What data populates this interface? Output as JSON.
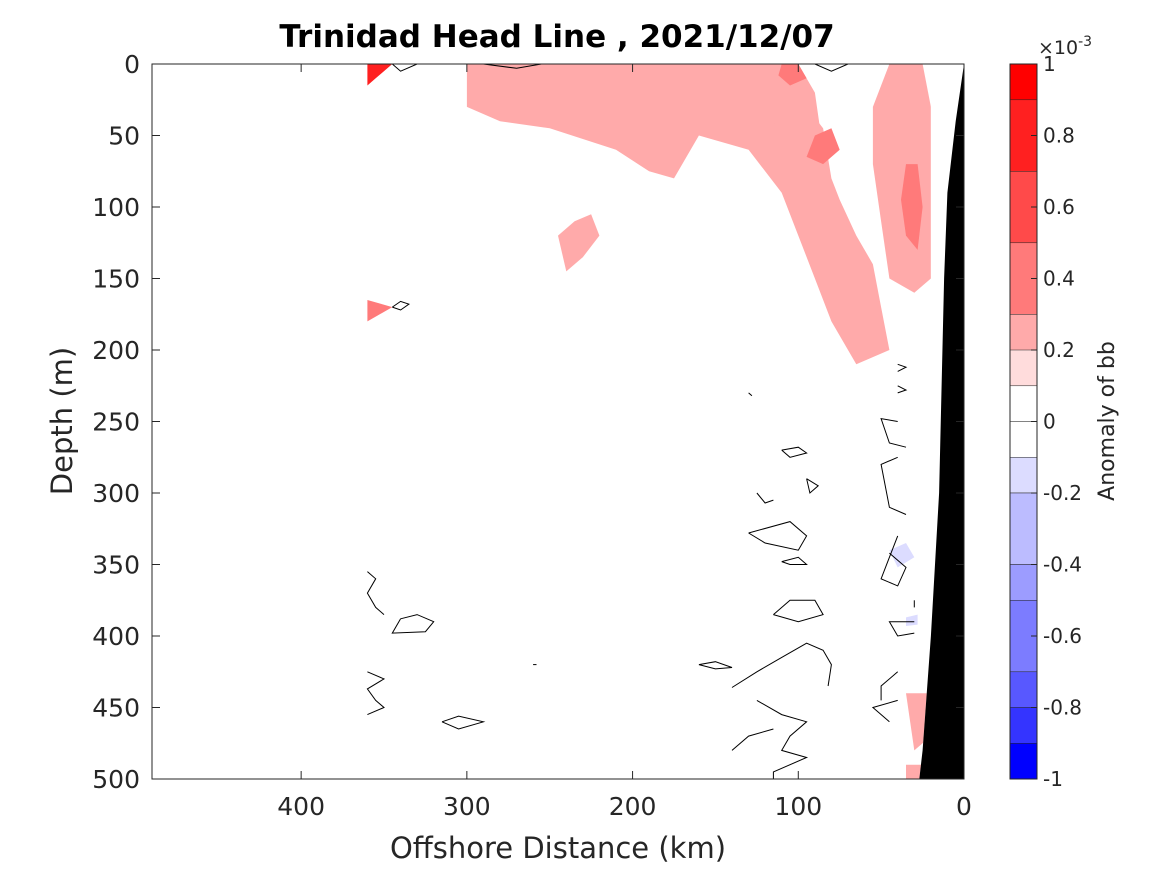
{
  "chart_data": {
    "type": "heatmap",
    "title": "Trinidad Head Line , 2021/12/07",
    "xlabel": "Offshore Distance (km)",
    "ylabel": "Depth (m)",
    "xlim": [
      490,
      0
    ],
    "ylim": [
      0,
      500
    ],
    "x_reversed": true,
    "y_reversed": true,
    "x_ticks": [
      400,
      300,
      200,
      100,
      0
    ],
    "y_ticks": [
      0,
      50,
      100,
      150,
      200,
      250,
      300,
      350,
      400,
      450,
      500
    ],
    "grid": false,
    "colorbar": {
      "label": "Anomaly of bb",
      "exponent_label": "×10",
      "exponent_power": "-3",
      "range": [
        -1,
        1
      ],
      "ticks": [
        "1",
        "0.8",
        "0.6",
        "0.4",
        "0.2",
        "0",
        "-0.2",
        "-0.4",
        "-0.6",
        "-0.8",
        "-1"
      ],
      "levels": [
        {
          "from": 0.9,
          "to": 1.0,
          "color": "#ff0000"
        },
        {
          "from": 0.7,
          "to": 0.9,
          "color": "#ff2020"
        },
        {
          "from": 0.5,
          "to": 0.7,
          "color": "#ff4a4a"
        },
        {
          "from": 0.3,
          "to": 0.5,
          "color": "#ff7a7a"
        },
        {
          "from": 0.1,
          "to": 0.3,
          "color": "#ffaaaa"
        },
        {
          "from": 0.1,
          "to": 0.2,
          "color": "#ffdcdc"
        },
        {
          "from": 0.0,
          "to": 0.1,
          "color": "#ffffff"
        },
        {
          "from": -0.1,
          "to": 0.0,
          "color": "#ffffff"
        },
        {
          "from": -0.2,
          "to": -0.1,
          "color": "#dcdcff"
        },
        {
          "from": -0.4,
          "to": -0.2,
          "color": "#bcbcff"
        },
        {
          "from": -0.5,
          "to": -0.4,
          "color": "#9c9cff"
        },
        {
          "from": -0.7,
          "to": -0.5,
          "color": "#7c7cff"
        },
        {
          "from": -0.8,
          "to": -0.7,
          "color": "#5858ff"
        },
        {
          "from": -0.9,
          "to": -0.8,
          "color": "#3434ff"
        },
        {
          "from": -1.0,
          "to": -0.9,
          "color": "#0000ff"
        }
      ]
    },
    "bottom_mask_color": "#000000",
    "positive_regions": [
      {
        "level": 0.15,
        "points": [
          [
            300,
            0
          ],
          [
            230,
            0
          ],
          [
            120,
            0
          ],
          [
            110,
            15
          ],
          [
            95,
            30
          ],
          [
            85,
            45
          ],
          [
            80,
            80
          ],
          [
            75,
            95
          ],
          [
            65,
            120
          ],
          [
            55,
            140
          ],
          [
            50,
            170
          ],
          [
            45,
            200
          ],
          [
            65,
            210
          ],
          [
            80,
            180
          ],
          [
            90,
            150
          ],
          [
            100,
            120
          ],
          [
            110,
            90
          ],
          [
            130,
            60
          ],
          [
            160,
            50
          ],
          [
            175,
            80
          ],
          [
            190,
            75
          ],
          [
            210,
            60
          ],
          [
            250,
            45
          ],
          [
            280,
            40
          ],
          [
            300,
            30
          ]
        ]
      },
      {
        "level": 0.15,
        "points": [
          [
            235,
            110
          ],
          [
            225,
            105
          ],
          [
            220,
            120
          ],
          [
            230,
            135
          ],
          [
            240,
            145
          ],
          [
            245,
            120
          ]
        ]
      },
      {
        "level": 0.15,
        "points": [
          [
            45,
            0
          ],
          [
            25,
            0
          ],
          [
            20,
            30
          ],
          [
            20,
            80
          ],
          [
            20,
            150
          ],
          [
            30,
            160
          ],
          [
            45,
            150
          ],
          [
            50,
            110
          ],
          [
            55,
            70
          ],
          [
            55,
            30
          ]
        ]
      },
      {
        "level": 0.3,
        "points": [
          [
            125,
            0
          ],
          [
            100,
            0
          ],
          [
            90,
            20
          ],
          [
            85,
            60
          ],
          [
            80,
            90
          ],
          [
            75,
            110
          ],
          [
            70,
            120
          ],
          [
            75,
            130
          ],
          [
            85,
            110
          ],
          [
            95,
            80
          ],
          [
            105,
            60
          ],
          [
            115,
            40
          ],
          [
            120,
            20
          ]
        ]
      },
      {
        "level": 0.3,
        "points": [
          [
            40,
            40
          ],
          [
            30,
            40
          ],
          [
            25,
            80
          ],
          [
            25,
            130
          ],
          [
            35,
            150
          ],
          [
            45,
            140
          ],
          [
            45,
            90
          ]
        ]
      },
      {
        "level": 0.5,
        "points": [
          [
            110,
            0
          ],
          [
            100,
            0
          ],
          [
            95,
            10
          ],
          [
            105,
            15
          ],
          [
            112,
            8
          ]
        ]
      },
      {
        "level": 0.5,
        "points": [
          [
            90,
            50
          ],
          [
            80,
            45
          ],
          [
            75,
            60
          ],
          [
            85,
            70
          ],
          [
            95,
            65
          ]
        ]
      },
      {
        "level": 0.5,
        "points": [
          [
            35,
            70
          ],
          [
            28,
            70
          ],
          [
            25,
            100
          ],
          [
            28,
            130
          ],
          [
            35,
            120
          ],
          [
            38,
            95
          ]
        ]
      },
      {
        "level": 0.9,
        "points": [
          [
            360,
            0
          ],
          [
            345,
            0
          ],
          [
            355,
            10
          ],
          [
            360,
            15
          ]
        ]
      },
      {
        "level": 0.5,
        "points": [
          [
            360,
            165
          ],
          [
            345,
            170
          ],
          [
            360,
            180
          ]
        ]
      },
      {
        "level": 0.15,
        "points": [
          [
            35,
            440
          ],
          [
            22,
            440
          ],
          [
            20,
            470
          ],
          [
            30,
            480
          ]
        ]
      },
      {
        "level": 0.15,
        "points": [
          [
            35,
            490
          ],
          [
            25,
            490
          ],
          [
            25,
            500
          ],
          [
            35,
            500
          ]
        ]
      }
    ],
    "negative_regions": [
      {
        "level": -0.15,
        "points": [
          [
            45,
            340
          ],
          [
            35,
            335
          ],
          [
            30,
            345
          ],
          [
            40,
            352
          ]
        ]
      },
      {
        "level": -0.15,
        "points": [
          [
            35,
            387
          ],
          [
            28,
            385
          ],
          [
            28,
            392
          ],
          [
            35,
            393
          ]
        ]
      }
    ],
    "contour_lines": [
      [
        [
          360,
          0
        ],
        [
          345,
          0
        ],
        [
          340,
          5
        ],
        [
          330,
          0
        ]
      ],
      [
        [
          290,
          0
        ],
        [
          270,
          3
        ],
        [
          255,
          0
        ]
      ],
      [
        [
          70,
          0
        ],
        [
          80,
          5
        ],
        [
          90,
          0
        ]
      ],
      [
        [
          345,
          170
        ],
        [
          340,
          172
        ],
        [
          335,
          168
        ],
        [
          340,
          166
        ],
        [
          345,
          170
        ]
      ],
      [
        [
          40,
          210
        ],
        [
          35,
          212
        ],
        [
          40,
          215
        ]
      ],
      [
        [
          40,
          225
        ],
        [
          35,
          228
        ],
        [
          40,
          230
        ]
      ],
      [
        [
          40,
          250
        ],
        [
          50,
          248
        ],
        [
          45,
          265
        ],
        [
          35,
          268
        ]
      ],
      [
        [
          40,
          275
        ],
        [
          50,
          280
        ],
        [
          45,
          310
        ],
        [
          35,
          315
        ]
      ],
      [
        [
          40,
          330
        ],
        [
          45,
          345
        ],
        [
          50,
          360
        ],
        [
          40,
          365
        ],
        [
          35,
          352
        ],
        [
          45,
          342
        ]
      ],
      [
        [
          110,
          270
        ],
        [
          100,
          268
        ],
        [
          95,
          272
        ],
        [
          105,
          275
        ],
        [
          110,
          270
        ]
      ],
      [
        [
          95,
          290
        ],
        [
          88,
          295
        ],
        [
          93,
          300
        ],
        [
          95,
          290
        ]
      ],
      [
        [
          125,
          300
        ],
        [
          120,
          307
        ],
        [
          115,
          305
        ]
      ],
      [
        [
          130,
          328
        ],
        [
          105,
          320
        ],
        [
          95,
          330
        ],
        [
          100,
          340
        ],
        [
          120,
          335
        ],
        [
          130,
          328
        ]
      ],
      [
        [
          110,
          348
        ],
        [
          100,
          345
        ],
        [
          95,
          350
        ],
        [
          105,
          350
        ],
        [
          110,
          348
        ]
      ],
      [
        [
          115,
          385
        ],
        [
          105,
          375
        ],
        [
          90,
          375
        ],
        [
          85,
          385
        ],
        [
          100,
          390
        ],
        [
          115,
          385
        ]
      ],
      [
        [
          360,
          355
        ],
        [
          355,
          360
        ],
        [
          360,
          370
        ],
        [
          355,
          380
        ],
        [
          350,
          385
        ]
      ],
      [
        [
          340,
          388
        ],
        [
          330,
          385
        ],
        [
          320,
          390
        ],
        [
          325,
          397
        ],
        [
          345,
          398
        ],
        [
          340,
          388
        ]
      ],
      [
        [
          360,
          425
        ],
        [
          350,
          430
        ],
        [
          360,
          437
        ],
        [
          355,
          445
        ],
        [
          350,
          450
        ],
        [
          360,
          455
        ]
      ],
      [
        [
          315,
          460
        ],
        [
          305,
          456
        ],
        [
          290,
          460
        ],
        [
          305,
          465
        ],
        [
          315,
          460
        ]
      ],
      [
        [
          160,
          420
        ],
        [
          150,
          418
        ],
        [
          140,
          422
        ],
        [
          150,
          423
        ],
        [
          160,
          420
        ]
      ],
      [
        [
          260,
          420
        ],
        [
          258,
          420
        ]
      ],
      [
        [
          140,
          436
        ],
        [
          125,
          425
        ],
        [
          110,
          415
        ],
        [
          95,
          405
        ],
        [
          85,
          410
        ],
        [
          80,
          420
        ],
        [
          82,
          435
        ]
      ],
      [
        [
          125,
          445
        ],
        [
          110,
          455
        ],
        [
          95,
          460
        ],
        [
          105,
          470
        ],
        [
          110,
          480
        ],
        [
          95,
          485
        ],
        [
          115,
          495
        ],
        [
          115,
          500
        ]
      ],
      [
        [
          140,
          480
        ],
        [
          130,
          470
        ],
        [
          115,
          465
        ]
      ],
      [
        [
          40,
          425
        ],
        [
          50,
          435
        ],
        [
          50,
          445
        ]
      ],
      [
        [
          40,
          445
        ],
        [
          55,
          450
        ],
        [
          45,
          460
        ]
      ],
      [
        [
          130,
          230
        ],
        [
          128,
          232
        ]
      ],
      [
        [
          30,
          390
        ],
        [
          45,
          390
        ],
        [
          40,
          400
        ],
        [
          30,
          398
        ]
      ],
      [
        [
          30,
          375
        ],
        [
          30,
          380
        ]
      ]
    ],
    "seafloor_points": [
      [
        0,
        0
      ],
      [
        5,
        40
      ],
      [
        10,
        90
      ],
      [
        12,
        150
      ],
      [
        15,
        300
      ],
      [
        20,
        400
      ],
      [
        25,
        480
      ],
      [
        27,
        500
      ],
      [
        0,
        500
      ]
    ],
    "coast_points": [
      [
        0,
        0
      ],
      [
        20,
        0
      ],
      [
        20,
        500
      ],
      [
        27,
        500
      ],
      [
        25,
        480
      ],
      [
        20,
        400
      ],
      [
        15,
        300
      ],
      [
        12,
        150
      ],
      [
        10,
        90
      ],
      [
        5,
        40
      ]
    ]
  }
}
